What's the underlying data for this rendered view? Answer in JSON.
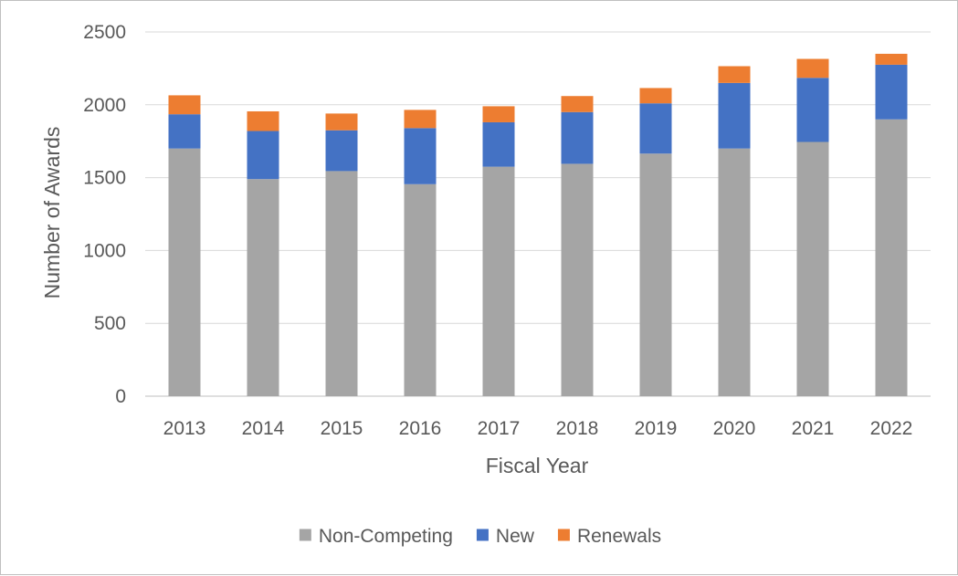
{
  "chart_data": {
    "type": "bar",
    "stacked": true,
    "title": "",
    "xlabel": "Fiscal Year",
    "ylabel": "Number of Awards",
    "ylim": [
      0,
      2500
    ],
    "yticks": [
      "0",
      "500",
      "1000",
      "1500",
      "2000",
      "2500"
    ],
    "grid": true,
    "legend_position": "bottom",
    "categories": [
      "2013",
      "2014",
      "2015",
      "2016",
      "2017",
      "2018",
      "2019",
      "2020",
      "2021",
      "2022"
    ],
    "series": [
      {
        "name": "Non-Competing",
        "color": "#a5a5a5",
        "values": [
          1700,
          1490,
          1545,
          1455,
          1575,
          1595,
          1665,
          1700,
          1745,
          1900
        ]
      },
      {
        "name": "New",
        "color": "#4472c4",
        "values": [
          235,
          330,
          280,
          385,
          305,
          355,
          345,
          450,
          440,
          375
        ]
      },
      {
        "name": "Renewals",
        "color": "#ed7d31",
        "values": [
          130,
          135,
          115,
          125,
          110,
          110,
          105,
          115,
          130,
          75
        ]
      }
    ]
  }
}
